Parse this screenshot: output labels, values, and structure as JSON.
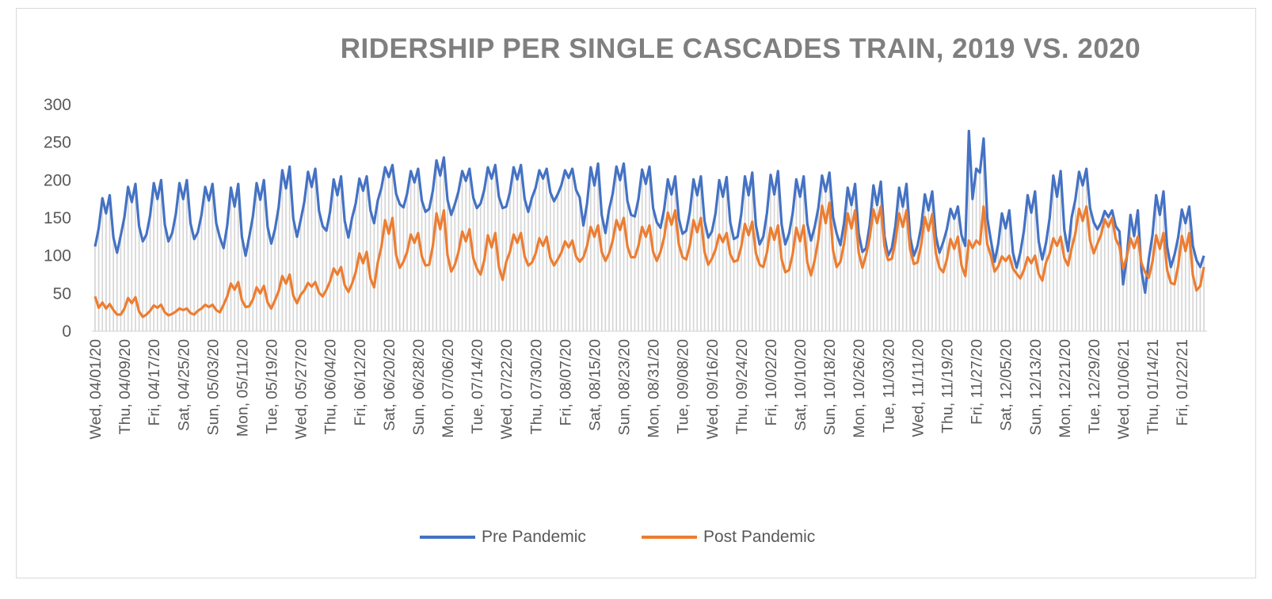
{
  "chart_data": {
    "type": "line",
    "title": "RIDERSHIP PER SINGLE CASCADES TRAIN, 2019 VS. 2020",
    "ylim": [
      0,
      300
    ],
    "yticks": [
      0,
      50,
      100,
      150,
      200,
      250,
      300
    ],
    "grid": false,
    "drop_lines": true,
    "legend_position": "bottom",
    "x_tick_every_n_points": 8,
    "x_tick_labels": [
      "Wed, 04/01/20",
      "Thu, 04/09/20",
      "Fri, 04/17/20",
      "Sat, 04/25/20",
      "Sun, 05/03/20",
      "Mon, 05/11/20",
      "Tue, 05/19/20",
      "Wed, 05/27/20",
      "Thu, 06/04/20",
      "Fri, 06/12/20",
      "Sat, 06/20/20",
      "Sun, 06/28/20",
      "Mon, 07/06/20",
      "Tue, 07/14/20",
      "Wed, 07/22/20",
      "Thu, 07/30/20",
      "Fri, 08/07/20",
      "Sat, 08/15/20",
      "Sun, 08/23/20",
      "Mon, 08/31/20",
      "Tue, 09/08/20",
      "Wed, 09/16/20",
      "Thu, 09/24/20",
      "Fri, 10/02/20",
      "Sat, 10/10/20",
      "Sun, 10/18/20",
      "Mon, 10/26/20",
      "Tue, 11/03/20",
      "Wed, 11/11/20",
      "Thu, 11/19/20",
      "Fri, 11/27/20",
      "Sat, 12/05/20",
      "Sun, 12/13/20",
      "Mon, 12/21/20",
      "Tue, 12/29/20",
      "Wed, 01/06/21",
      "Thu, 01/14/21",
      "Fri, 01/22/21"
    ],
    "series": [
      {
        "name": "Pre Pandemic",
        "color": "#4472c4",
        "values": [
          112,
          136,
          176,
          156,
          180,
          124,
          104,
          127,
          151,
          191,
          171,
          195,
          139,
          119,
          128,
          153,
          196,
          175,
          200,
          141,
          119,
          130,
          155,
          196,
          175,
          200,
          143,
          122,
          131,
          154,
          191,
          173,
          195,
          143,
          124,
          110,
          140,
          190,
          165,
          195,
          125,
          100,
          125,
          152,
          196,
          174,
          200,
          138,
          116,
          135,
          164,
          213,
          189,
          218,
          149,
          125,
          147,
          171,
          211,
          191,
          215,
          159,
          139,
          133,
          158,
          201,
          180,
          205,
          146,
          124,
          150,
          169,
          202,
          186,
          205,
          160,
          143,
          173,
          190,
          217,
          204,
          220,
          182,
          168,
          164,
          182,
          212,
          197,
          215,
          173,
          158,
          162,
          186,
          226,
          206,
          230,
          174,
          154,
          168,
          185,
          212,
          199,
          215,
          177,
          163,
          169,
          187,
          217,
          202,
          220,
          178,
          163,
          165,
          184,
          217,
          201,
          220,
          175,
          158,
          177,
          190,
          213,
          202,
          215,
          184,
          172,
          181,
          193,
          213,
          203,
          215,
          187,
          177,
          140,
          169,
          217,
          193,
          222,
          154,
          130,
          161,
          182,
          218,
          200,
          222,
          172,
          154,
          152,
          175,
          214,
          195,
          218,
          163,
          144,
          137,
          161,
          201,
          181,
          205,
          149,
          129,
          133,
          158,
          201,
          180,
          205,
          146,
          124,
          132,
          156,
          200,
          178,
          204,
          144,
          122,
          125,
          155,
          205,
          180,
          210,
          140,
          115,
          125,
          156,
          207,
          181,
          212,
          141,
          115,
          129,
          156,
          201,
          178,
          205,
          142,
          120,
          138,
          163,
          206,
          185,
          210,
          151,
          129,
          114,
          143,
          190,
          167,
          195,
          129,
          105,
          110,
          141,
          193,
          167,
          198,
          126,
          100,
          110,
          140,
          190,
          165,
          195,
          125,
          100,
          113,
          138,
          181,
          160,
          185,
          126,
          104,
          118,
          135,
          162,
          149,
          165,
          127,
          113,
          265,
          175,
          215,
          210,
          255,
          150,
          120,
          92,
          116,
          156,
          136,
          160,
          104,
          84,
          104,
          133,
          180,
          157,
          185,
          119,
          95,
          117,
          150,
          206,
          178,
          212,
          134,
          106,
          151,
          174,
          211,
          193,
          215,
          163,
          144,
          135,
          144,
          159,
          151,
          160,
          139,
          132,
          62,
          97,
          154,
          126,
          160,
          80,
          51,
          96,
          127,
          180,
          154,
          185,
          112,
          85,
          101,
          124,
          161,
          143,
          165,
          113,
          94,
          85,
          100
        ]
      },
      {
        "name": "Post Pandemic",
        "color": "#ed7d31",
        "values": [
          46,
          31,
          38,
          30,
          36,
          28,
          22,
          22,
          30,
          44,
          37,
          45,
          26,
          19,
          22,
          27,
          34,
          31,
          35,
          25,
          21,
          23,
          26,
          30,
          28,
          30,
          24,
          22,
          27,
          30,
          35,
          32,
          35,
          28,
          25,
          35,
          46,
          63,
          55,
          65,
          41,
          32,
          33,
          42,
          58,
          50,
          60,
          38,
          30,
          41,
          53,
          73,
          63,
          75,
          47,
          37,
          48,
          54,
          64,
          59,
          65,
          51,
          46,
          55,
          66,
          83,
          75,
          85,
          61,
          52,
          63,
          78,
          103,
          90,
          105,
          70,
          58,
          91,
          112,
          147,
          129,
          150,
          101,
          84,
          92,
          105,
          128,
          117,
          130,
          99,
          87,
          88,
          113,
          156,
          135,
          160,
          101,
          79,
          88,
          105,
          132,
          119,
          135,
          97,
          83,
          75,
          94,
          127,
          111,
          130,
          85,
          68,
          92,
          105,
          128,
          117,
          130,
          99,
          87,
          91,
          103,
          123,
          113,
          125,
          97,
          87,
          95,
          104,
          119,
          111,
          120,
          99,
          92,
          98,
          113,
          138,
          125,
          140,
          105,
          93,
          103,
          120,
          147,
          134,
          150,
          112,
          98,
          98,
          113,
          138,
          125,
          140,
          105,
          93,
          105,
          124,
          157,
          141,
          160,
          115,
          98,
          95,
          114,
          147,
          131,
          150,
          105,
          88,
          96,
          108,
          128,
          118,
          130,
          102,
          92,
          94,
          112,
          142,
          127,
          145,
          103,
          88,
          85,
          104,
          137,
          121,
          140,
          95,
          78,
          81,
          102,
          137,
          119,
          140,
          91,
          74,
          94,
          121,
          166,
          143,
          170,
          107,
          85,
          92,
          116,
          156,
          136,
          160,
          104,
          84,
          101,
          124,
          161,
          143,
          165,
          113,
          94,
          96,
          119,
          156,
          138,
          160,
          108,
          89,
          91,
          114,
          151,
          133,
          155,
          103,
          84,
          78,
          95,
          122,
          109,
          125,
          87,
          73,
          120,
          110,
          120,
          115,
          165,
          115,
          100,
          79,
          86,
          99,
          93,
          100,
          83,
          76,
          70,
          81,
          98,
          90,
          100,
          76,
          67,
          91,
          103,
          123,
          113,
          125,
          97,
          87,
          110,
          129,
          162,
          146,
          165,
          120,
          103,
          116,
          128,
          148,
          138,
          150,
          122,
          112,
          83,
          98,
          123,
          110,
          125,
          90,
          78,
          71,
          92,
          127,
          109,
          130,
          81,
          64,
          62,
          86,
          126,
          106,
          130,
          74,
          54,
          60,
          85
        ]
      }
    ]
  }
}
